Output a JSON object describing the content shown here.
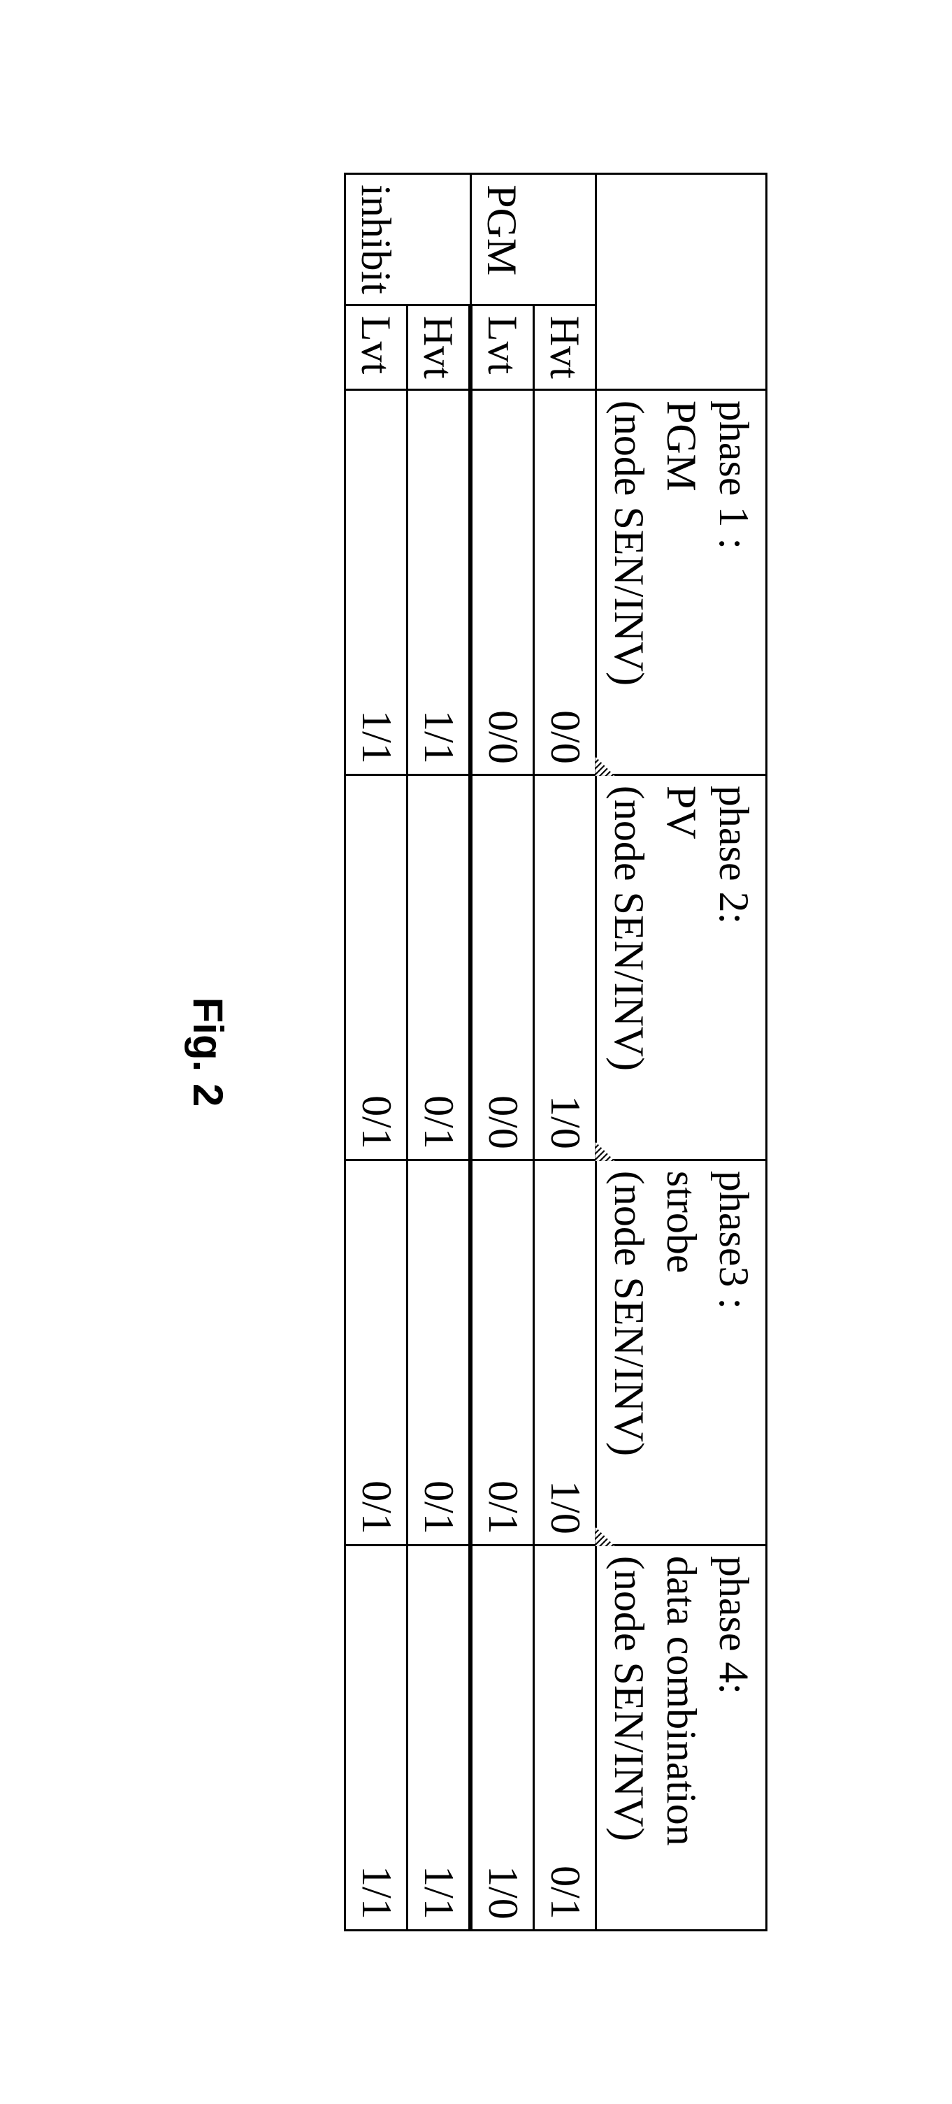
{
  "table": {
    "corner_blank": "",
    "phase_headers": [
      {
        "l1": "phase 1 :",
        "l2": "PGM",
        "l3": "(node SEN/INV)"
      },
      {
        "l1": "phase 2:",
        "l2": "PV",
        "l3": "(node SEN/INV)"
      },
      {
        "l1": "phase3 :",
        "l2": "strobe",
        "l3": "(node SEN/INV)"
      },
      {
        "l1": "phase 4:",
        "l2": "data combination",
        "l3": "(node SEN/INV)"
      }
    ],
    "row_groups": [
      {
        "cat": "PGM",
        "rows": [
          {
            "label": "Hvt",
            "vals": [
              "0/0",
              "1/0",
              "1/0",
              "0/1"
            ]
          },
          {
            "label": "Lvt",
            "vals": [
              "0/0",
              "0/0",
              "0/1",
              "1/0"
            ]
          }
        ]
      },
      {
        "cat": "inhibit",
        "rows": [
          {
            "label": "Hvt",
            "vals": [
              "1/1",
              "0/1",
              "0/1",
              "1/1"
            ]
          },
          {
            "label": "Lvt",
            "vals": [
              "1/1",
              "0/1",
              "0/1",
              "1/1"
            ]
          }
        ]
      }
    ]
  },
  "caption": "Fig. 2"
}
